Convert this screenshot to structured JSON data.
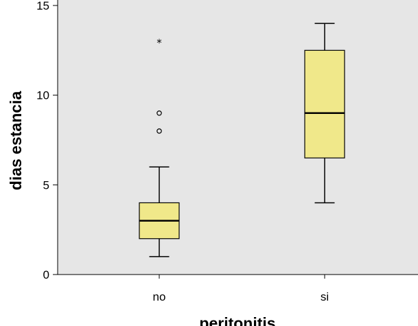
{
  "chart_data": {
    "type": "boxplot",
    "xlabel": "peritonitis",
    "ylabel": "dias estancia",
    "ylim": [
      0,
      15
    ],
    "yticks": [
      0,
      5,
      10,
      15
    ],
    "grid": false,
    "categories": [
      "no",
      "si"
    ],
    "boxes": [
      {
        "category": "no",
        "whisker_low": 1,
        "q1": 2,
        "median": 3,
        "q3": 4,
        "whisker_high": 6,
        "outliers": [
          8,
          9
        ],
        "extremes": [
          13
        ]
      },
      {
        "category": "si",
        "whisker_low": 4,
        "q1": 6.5,
        "median": 9,
        "q3": 12.5,
        "whisker_high": 14,
        "outliers": [],
        "extremes": []
      }
    ],
    "colors": {
      "box_fill": "#f0e88a",
      "plot_background": "#e6e6e6",
      "line": "#000000"
    }
  }
}
